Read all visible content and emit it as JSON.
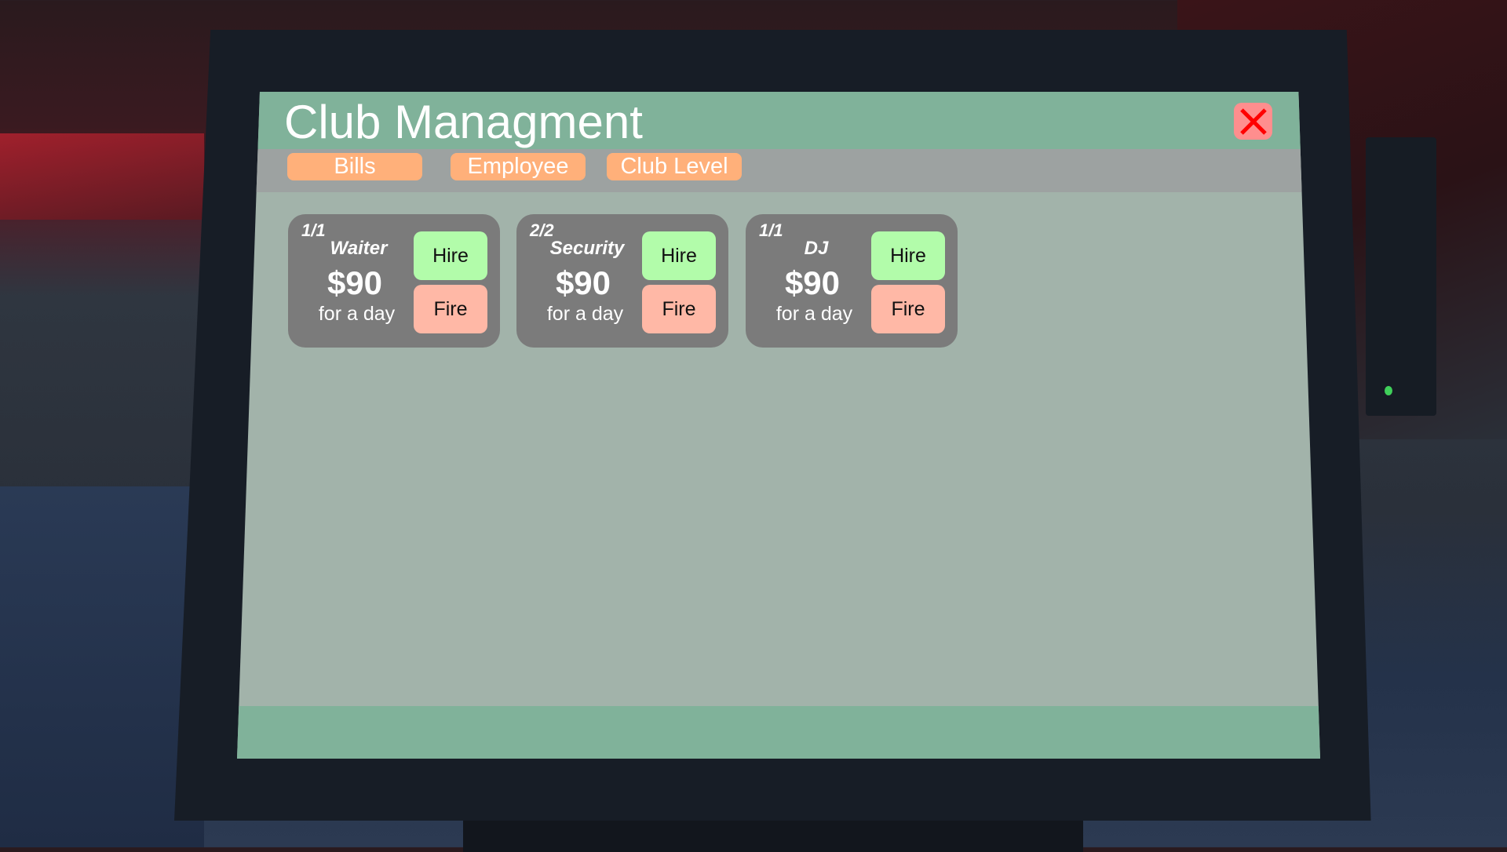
{
  "window": {
    "title": "Club Managment",
    "close_icon": "close-x-icon",
    "close_color": "#ff0000"
  },
  "tabs": [
    {
      "label": "Bills"
    },
    {
      "label": "Employee"
    },
    {
      "label": "Club Level"
    }
  ],
  "employees": [
    {
      "count": "1/1",
      "role": "Waiter",
      "price": "$90",
      "period": "for a day",
      "hire": "Hire",
      "fire": "Fire"
    },
    {
      "count": "2/2",
      "role": "Security",
      "price": "$90",
      "period": "for a day",
      "hire": "Hire",
      "fire": "Fire"
    },
    {
      "count": "1/1",
      "role": "DJ",
      "price": "$90",
      "period": "for a day",
      "hire": "Hire",
      "fire": "Fire"
    }
  ],
  "colors": {
    "header": "#80b29a",
    "tab": "#ffb07a",
    "hire": "#b2fcaa",
    "fire": "#ffb8a6",
    "card": "#7b7b7b"
  }
}
